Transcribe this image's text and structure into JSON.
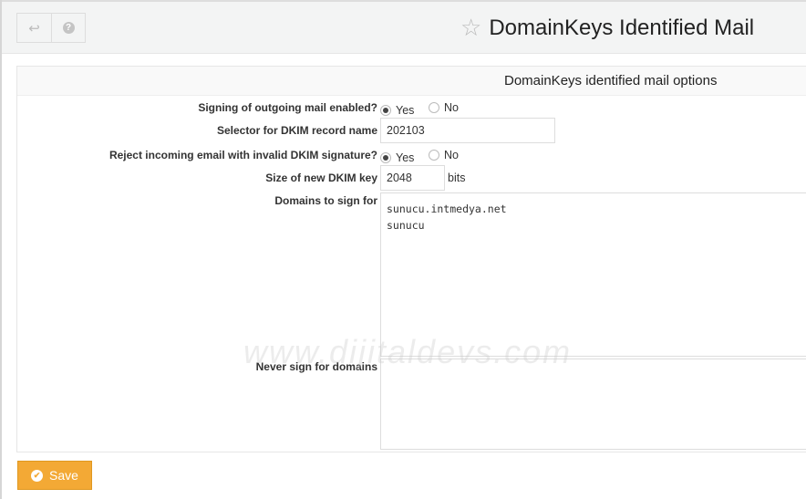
{
  "header": {
    "title": "DomainKeys Identified Mail",
    "back_icon": "return-arrow-icon",
    "help_icon": "question-icon",
    "favorite_icon": "star-icon"
  },
  "panel": {
    "title": "DomainKeys identified mail options"
  },
  "fields": {
    "signing": {
      "label": "Signing of outgoing mail enabled?",
      "yes": "Yes",
      "no": "No",
      "value": "Yes"
    },
    "selector": {
      "label": "Selector for DKIM record name",
      "value": "202103"
    },
    "reject": {
      "label": "Reject incoming email with invalid DKIM signature?",
      "yes": "Yes",
      "no": "No",
      "value": "Yes"
    },
    "keysize": {
      "label": "Size of new DKIM key",
      "value": "2048",
      "unit": "bits"
    },
    "domains": {
      "label": "Domains to sign for",
      "value": "sunucu.intmedya.net\nsunucu"
    },
    "never": {
      "label": "Never sign for domains",
      "value": ""
    }
  },
  "watermark": "www.dijitaldevs.com",
  "save_label": "Save",
  "colors": {
    "save": "#f3a935"
  }
}
